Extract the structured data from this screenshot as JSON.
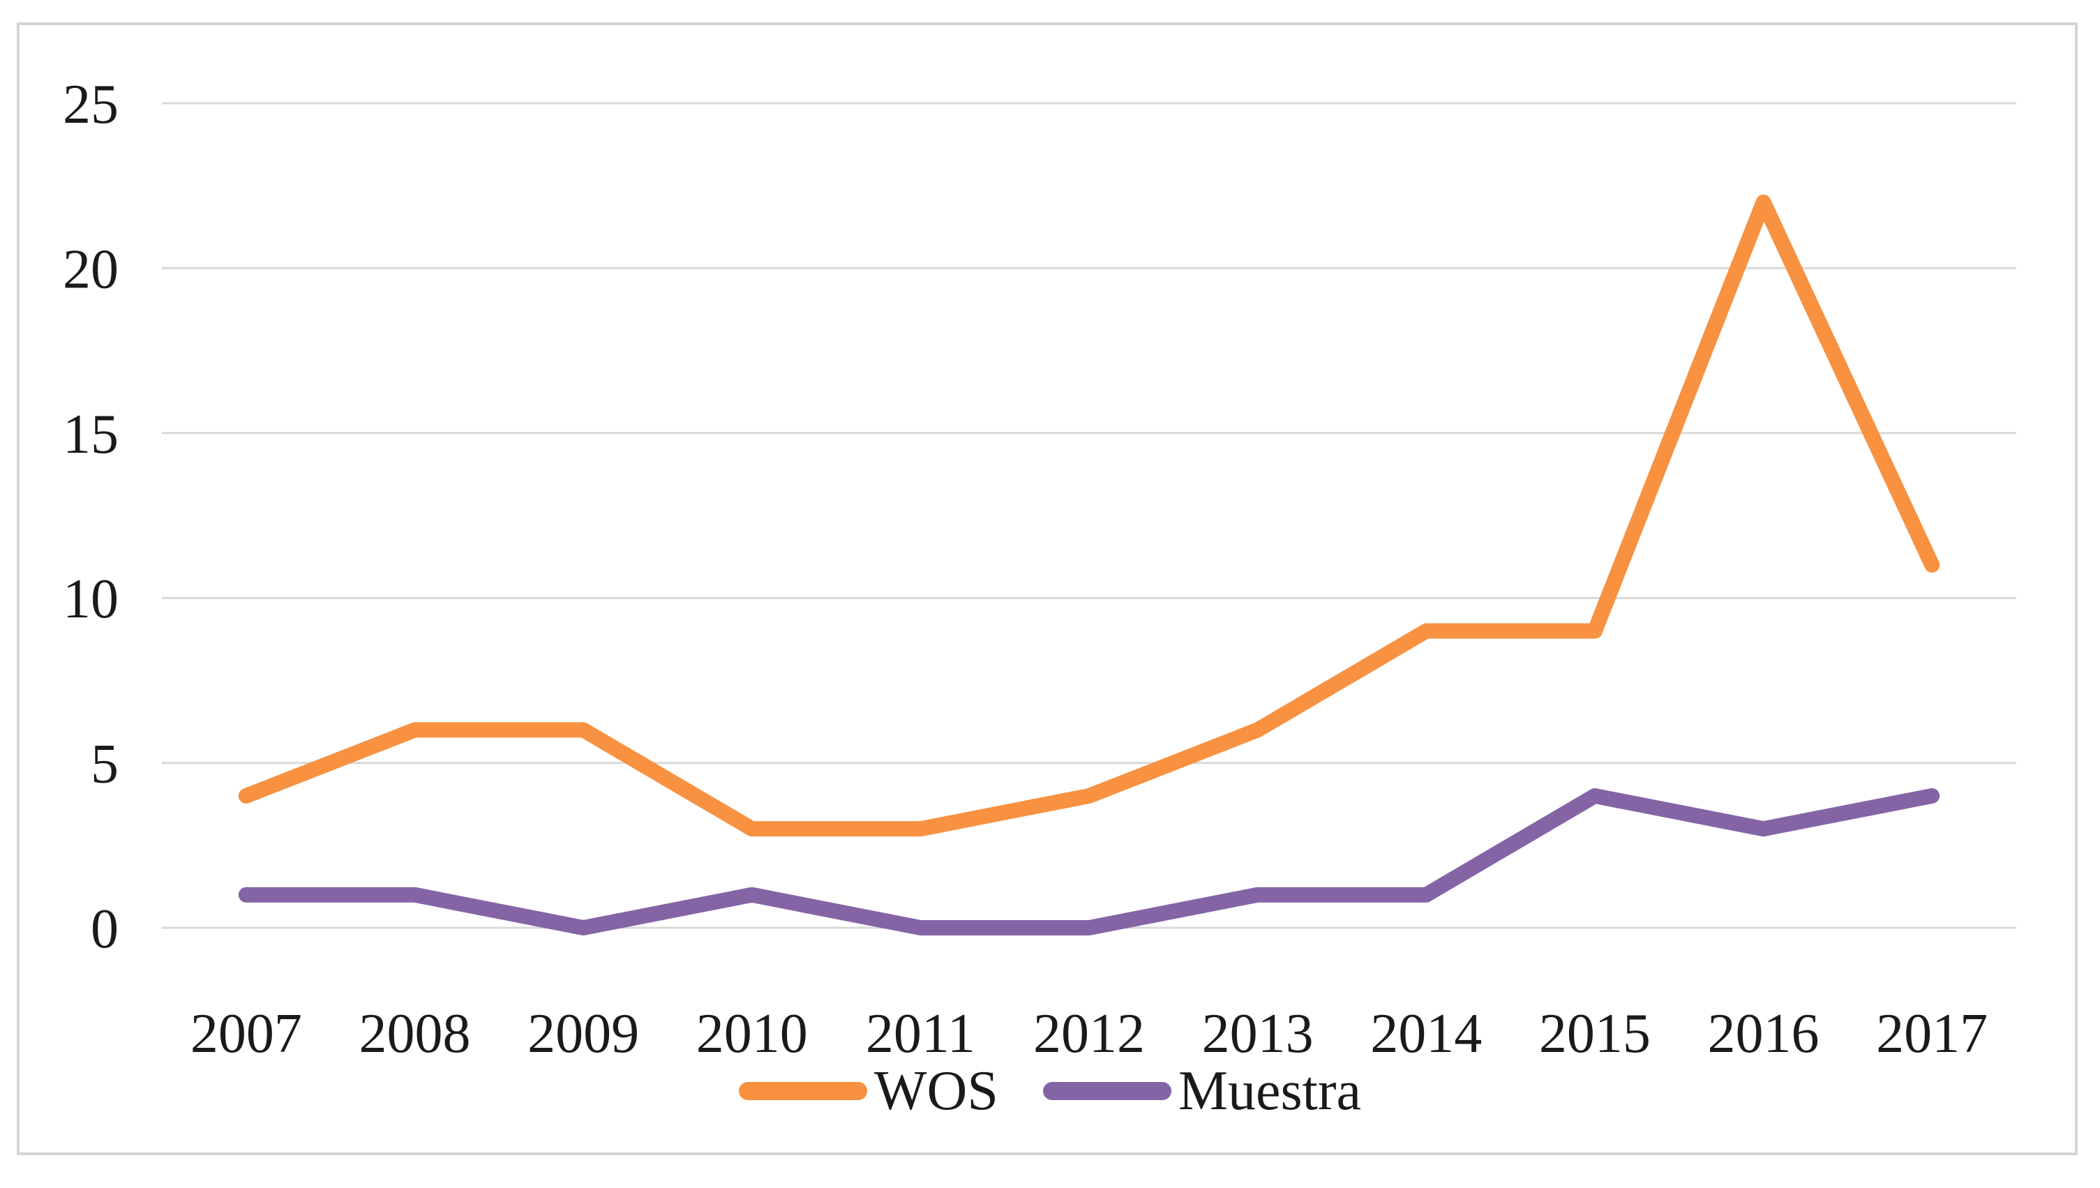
{
  "chart_data": {
    "type": "line",
    "title": "",
    "xlabel": "",
    "ylabel": "",
    "categories": [
      "2007",
      "2008",
      "2009",
      "2010",
      "2011",
      "2012",
      "2013",
      "2014",
      "2015",
      "2016",
      "2017"
    ],
    "series": [
      {
        "name": "WOS",
        "color": "#F89140",
        "values": [
          4,
          6,
          6,
          3,
          3,
          4,
          6,
          9,
          9,
          22,
          11
        ]
      },
      {
        "name": "Muestra",
        "color": "#8564A6",
        "values": [
          1,
          1,
          0,
          1,
          0,
          0,
          1,
          1,
          4,
          3,
          4
        ]
      }
    ],
    "ylim": [
      0,
      25
    ],
    "yticks": [
      0,
      5,
      10,
      15,
      20,
      25
    ],
    "grid": true,
    "legend_position": "bottom-center",
    "colors": {
      "gridline": "#d9d9d9",
      "tick_text": "#1a1a1a",
      "frame": "#d5d5d5",
      "background": "#ffffff"
    }
  }
}
